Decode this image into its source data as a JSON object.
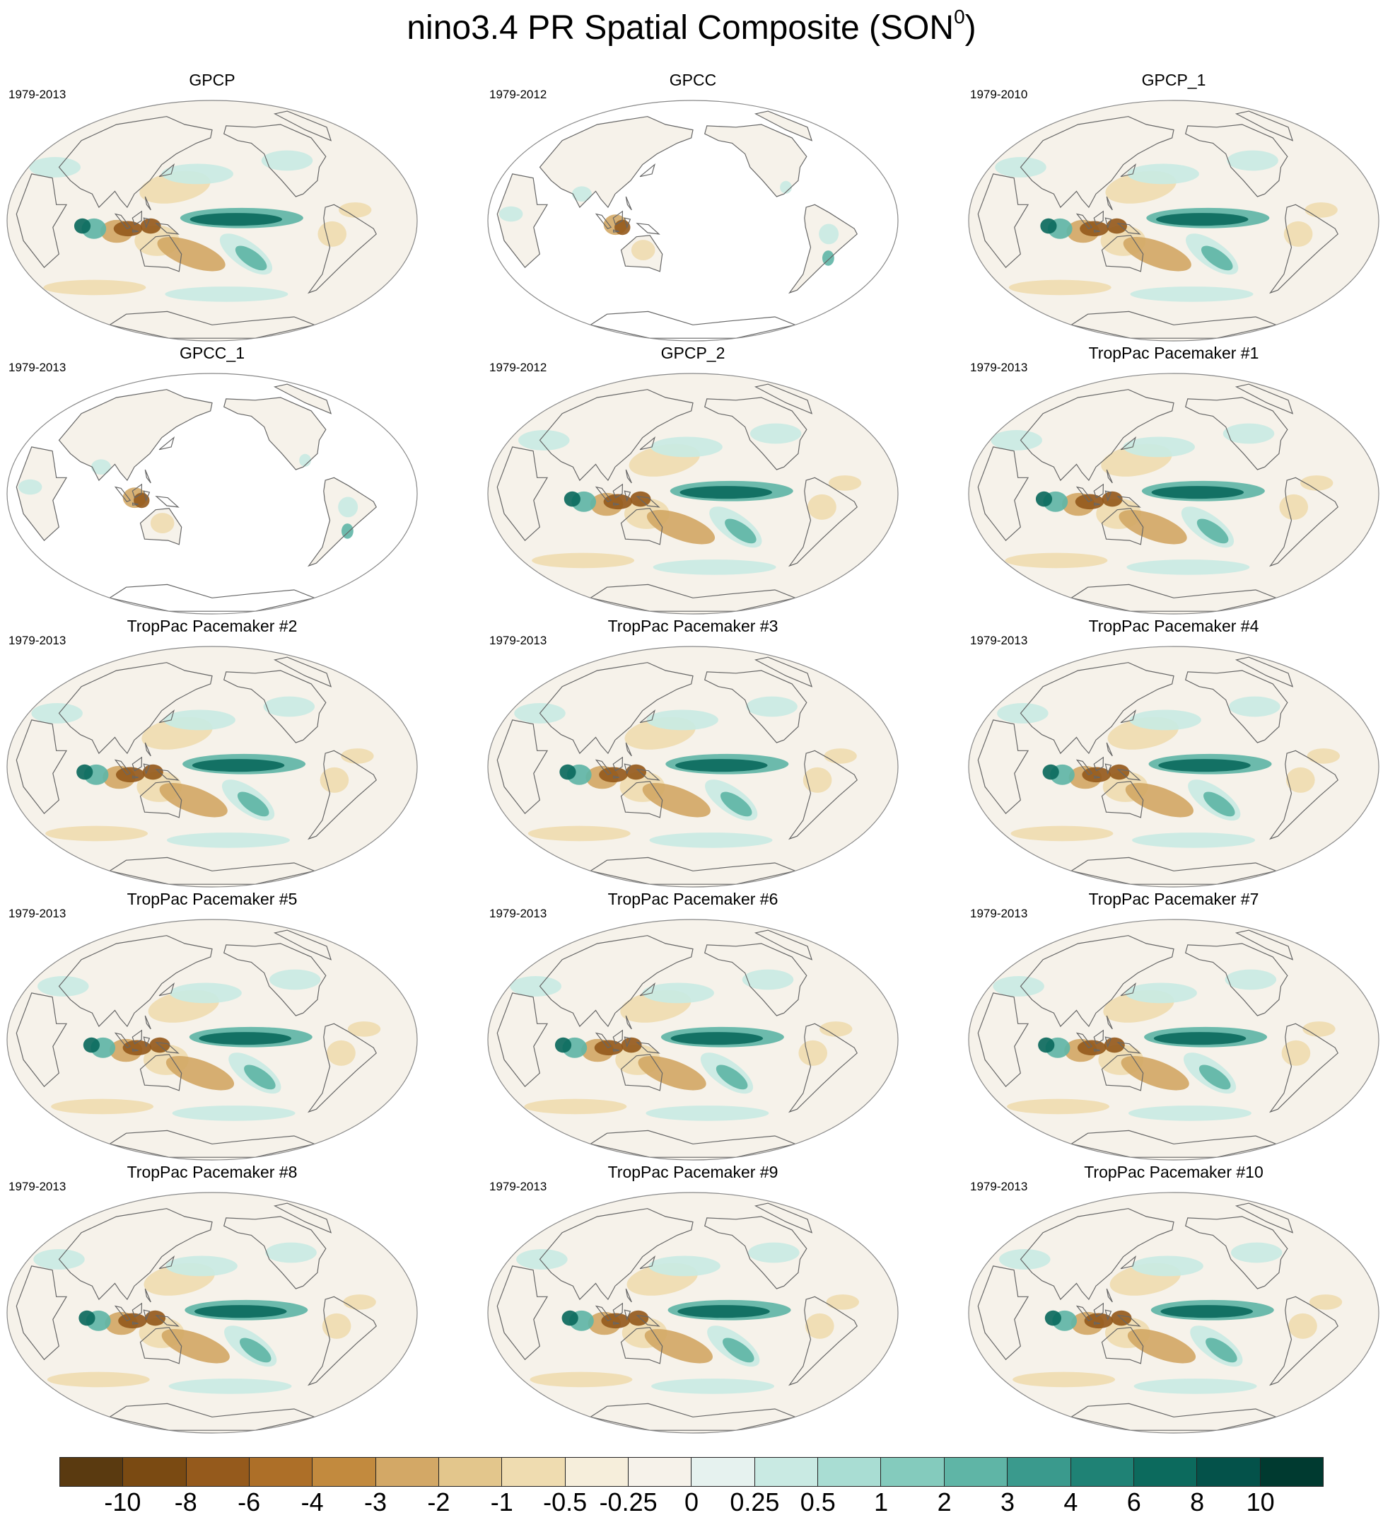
{
  "title": {
    "text": "nino3.4 PR Spatial Composite (SON",
    "superscript": "0",
    "suffix": ")"
  },
  "panels": [
    {
      "title": "GPCP",
      "period": "1979-2013",
      "coverage": "global"
    },
    {
      "title": "GPCC",
      "period": "1979-2012",
      "coverage": "land"
    },
    {
      "title": "GPCP_1",
      "period": "1979-2010",
      "coverage": "global"
    },
    {
      "title": "GPCC_1",
      "period": "1979-2013",
      "coverage": "land"
    },
    {
      "title": "GPCP_2",
      "period": "1979-2012",
      "coverage": "global"
    },
    {
      "title": "TropPac Pacemaker #1",
      "period": "1979-2013",
      "coverage": "global"
    },
    {
      "title": "TropPac Pacemaker #2",
      "period": "1979-2013",
      "coverage": "global"
    },
    {
      "title": "TropPac Pacemaker #3",
      "period": "1979-2013",
      "coverage": "global"
    },
    {
      "title": "TropPac Pacemaker #4",
      "period": "1979-2013",
      "coverage": "global"
    },
    {
      "title": "TropPac Pacemaker #5",
      "period": "1979-2013",
      "coverage": "global"
    },
    {
      "title": "TropPac Pacemaker #6",
      "period": "1979-2013",
      "coverage": "global"
    },
    {
      "title": "TropPac Pacemaker #7",
      "period": "1979-2013",
      "coverage": "global"
    },
    {
      "title": "TropPac Pacemaker #8",
      "period": "1979-2013",
      "coverage": "global"
    },
    {
      "title": "TropPac Pacemaker #9",
      "period": "1979-2013",
      "coverage": "global"
    },
    {
      "title": "TropPac Pacemaker #10",
      "period": "1979-2013",
      "coverage": "global"
    }
  ],
  "colorbar": {
    "colors": [
      "#5a3a10",
      "#7a4a12",
      "#955a1c",
      "#ad6f28",
      "#c28a3e",
      "#d3a866",
      "#e3c68c",
      "#efdcb0",
      "#f6eedb",
      "#f6f2ea",
      "#e6f2ef",
      "#c9eae3",
      "#a9ddd3",
      "#84cbbd",
      "#5fb5a6",
      "#3a9a8d",
      "#1f8275",
      "#0c6a5d",
      "#04524a",
      "#003a30"
    ],
    "labels": [
      "-10",
      "-8",
      "-6",
      "-4",
      "-3",
      "-2",
      "-1",
      "-0.5",
      "-0.25",
      "0",
      "0.25",
      "0.5",
      "1",
      "2",
      "3",
      "4",
      "6",
      "8",
      "10"
    ]
  },
  "palette": {
    "dry_strong": "#955a1c",
    "dry": "#d3a866",
    "dry_light": "#efdcb0",
    "neutral": "#f6f2ea",
    "wet_light": "#c9eae3",
    "wet": "#5fb5a6",
    "wet_strong": "#0c6a5d",
    "coastline": "#666666",
    "frame": "#888888"
  }
}
